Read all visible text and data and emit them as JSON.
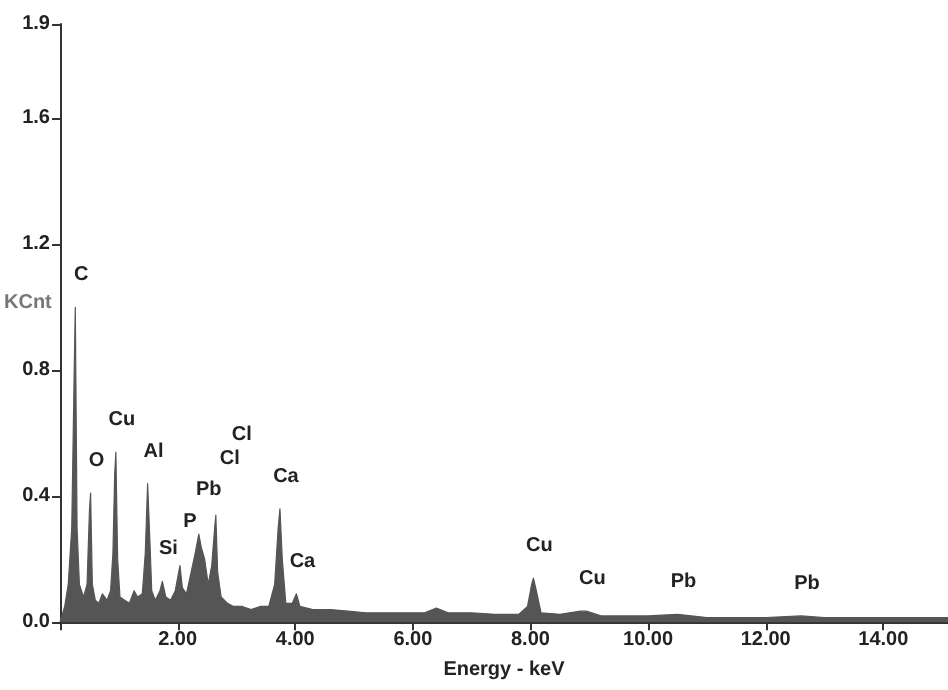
{
  "chart_data": {
    "type": "area",
    "xlabel": "Energy - keV",
    "ylabel": "KCnt",
    "color": "#555555",
    "xlim": [
      0,
      15.1
    ],
    "ylim": [
      0,
      1.9
    ],
    "xticks": [
      {
        "value": 0,
        "label": null
      },
      {
        "value": 2,
        "label": "2.00"
      },
      {
        "value": 4,
        "label": "4.00"
      },
      {
        "value": 6,
        "label": "6.00"
      },
      {
        "value": 8,
        "label": "8.00"
      },
      {
        "value": 10,
        "label": "10.00"
      },
      {
        "value": 12,
        "label": "12.00"
      },
      {
        "value": 14,
        "label": "14.00"
      }
    ],
    "yticks": [
      {
        "value": 0,
        "label": "0.0"
      },
      0.4,
      0.8,
      1.2,
      1.6,
      1.9
    ],
    "x": [
      0,
      0.08,
      0.14,
      0.2,
      0.24,
      0.26,
      0.29,
      0.33,
      0.4,
      0.46,
      0.5,
      0.52,
      0.55,
      0.6,
      0.66,
      0.72,
      0.8,
      0.86,
      0.9,
      0.93,
      0.95,
      0.98,
      1.02,
      1.1,
      1.18,
      1.26,
      1.32,
      1.4,
      1.45,
      1.49,
      1.52,
      1.56,
      1.62,
      1.7,
      1.74,
      1.8,
      1.88,
      1.96,
      2.01,
      2.04,
      2.08,
      2.15,
      2.22,
      2.3,
      2.36,
      2.4,
      2.46,
      2.52,
      2.58,
      2.63,
      2.65,
      2.68,
      2.74,
      2.85,
      2.95,
      3.1,
      3.25,
      3.4,
      3.55,
      3.65,
      3.71,
      3.74,
      3.78,
      3.84,
      3.95,
      4.02,
      4.08,
      4.3,
      4.6,
      4.9,
      5.2,
      5.5,
      5.8,
      6.2,
      6.4,
      6.6,
      7,
      7.4,
      7.8,
      7.95,
      8.02,
      8.05,
      8.1,
      8.18,
      8.5,
      8.85,
      8.95,
      9.2,
      9.6,
      10,
      10.5,
      11,
      11.5,
      12,
      12.6,
      13,
      13.5,
      14,
      14.5,
      15.1
    ],
    "values": [
      0,
      0.05,
      0.12,
      0.3,
      0.78,
      1.0,
      0.3,
      0.12,
      0.08,
      0.12,
      0.35,
      0.41,
      0.12,
      0.07,
      0.06,
      0.09,
      0.07,
      0.1,
      0.22,
      0.47,
      0.54,
      0.2,
      0.08,
      0.07,
      0.06,
      0.1,
      0.08,
      0.09,
      0.22,
      0.44,
      0.3,
      0.1,
      0.07,
      0.1,
      0.13,
      0.08,
      0.07,
      0.1,
      0.15,
      0.18,
      0.11,
      0.09,
      0.15,
      0.22,
      0.28,
      0.24,
      0.2,
      0.12,
      0.18,
      0.3,
      0.34,
      0.16,
      0.08,
      0.06,
      0.05,
      0.05,
      0.04,
      0.05,
      0.05,
      0.12,
      0.3,
      0.36,
      0.2,
      0.06,
      0.06,
      0.09,
      0.05,
      0.04,
      0.04,
      0.035,
      0.03,
      0.03,
      0.03,
      0.03,
      0.045,
      0.03,
      0.03,
      0.025,
      0.025,
      0.05,
      0.12,
      0.14,
      0.1,
      0.03,
      0.025,
      0.035,
      0.035,
      0.02,
      0.02,
      0.02,
      0.025,
      0.015,
      0.015,
      0.015,
      0.02,
      0.015,
      0.015,
      0.015,
      0.015,
      0.015
    ],
    "annotations": [
      {
        "text": "C",
        "x": 0.26,
        "y": 1.0
      },
      {
        "text": "O",
        "x": 0.52,
        "y": 0.41
      },
      {
        "text": "Cu",
        "x": 0.95,
        "y": 0.54
      },
      {
        "text": "Al",
        "x": 1.49,
        "y": 0.44
      },
      {
        "text": "Si",
        "x": 1.74,
        "y": 0.13
      },
      {
        "text": "P",
        "x": 2.04,
        "y": 0.18
      },
      {
        "text": "Pb",
        "x": 2.36,
        "y": 0.28
      },
      {
        "text": "Cl",
        "x": 2.65,
        "y": 0.34
      },
      "Cl",
      {
        "text": "Ca",
        "x": 3.74,
        "y": 0.36
      },
      {
        "text": "Ca",
        "x": 4.02,
        "y": 0.09
      },
      {
        "text": "Cu",
        "x": 8.05,
        "y": 0.14
      },
      {
        "text": "Cu",
        "x": 8.95,
        "y": 0.035
      },
      {
        "text": "Pb",
        "x": 10.5,
        "y": 0.025
      },
      {
        "text": "Pb",
        "x": 12.6,
        "y": 0.02
      }
    ]
  }
}
